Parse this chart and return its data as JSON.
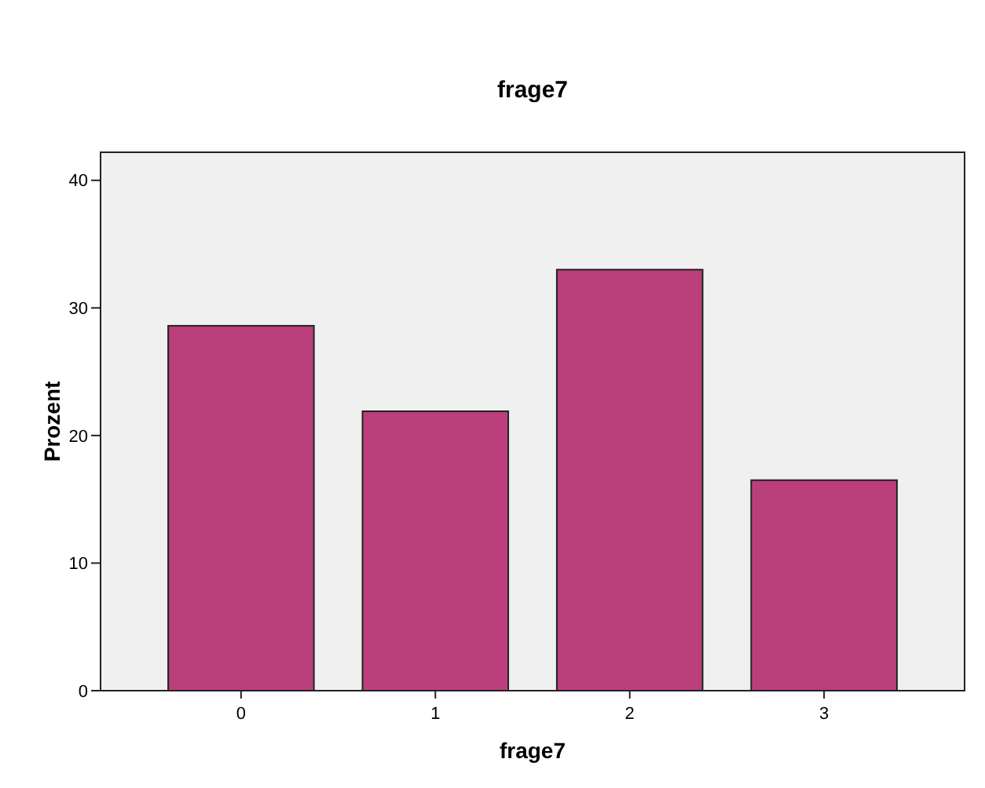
{
  "chart_data": {
    "type": "bar",
    "title": "frage7",
    "xlabel": "frage7",
    "ylabel": "Prozent",
    "categories": [
      "0",
      "1",
      "2",
      "3"
    ],
    "values": [
      28.6,
      21.9,
      33.0,
      16.5
    ],
    "color": "#bb3f7c",
    "ylim": [
      0,
      42.2
    ],
    "yticks": [
      0,
      10,
      20,
      30,
      40
    ],
    "grid": false
  }
}
